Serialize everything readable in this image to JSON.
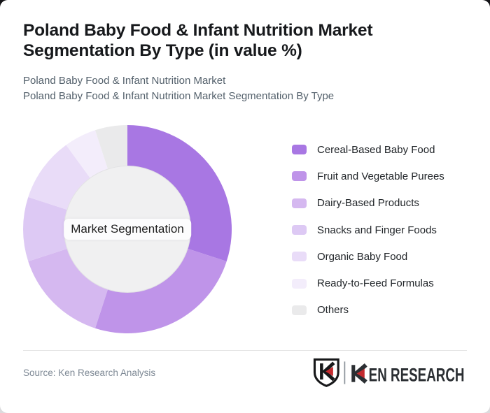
{
  "header": {
    "title": "Poland Baby Food & Infant Nutrition Market Segmentation By Type (in value %)",
    "title_lines": [
      "Poland Baby Food & Infant Nutrition Market",
      "Segmentation By Type (in value %)"
    ],
    "subtitle1": "Poland Baby Food & Infant Nutrition Market",
    "subtitle2": "Poland Baby Food & Infant Nutrition Market Segmentation By Type"
  },
  "chart_data": {
    "type": "pie",
    "subtype": "donut",
    "title": "Poland Baby Food & Infant Nutrition Market Segmentation By Type (in value %)",
    "center_label": "Market Segmentation",
    "unit": "value %",
    "categories": [
      "Cereal-Based Baby Food",
      "Fruit and Vegetable Purees",
      "Dairy-Based Products",
      "Snacks and Finger Foods",
      "Organic Baby Food",
      "Ready-to-Feed Formulas",
      "Others"
    ],
    "values": [
      30,
      25,
      15,
      10,
      10,
      5,
      5
    ],
    "colors": [
      "#a877e3",
      "#bf94e9",
      "#d5b8f0",
      "#ddc9f4",
      "#e9dcf8",
      "#f3edfb",
      "#eaeaeb"
    ],
    "start_angle_deg": 0,
    "direction": "clockwise",
    "legend_position": "right",
    "data_labels_shown": false
  },
  "footer": {
    "source": "Source: Ken Research Analysis",
    "brand_name": "KEN RESEARCH",
    "brand_text_after_k": "EN RESEARCH"
  },
  "colors": {
    "accent_red": "#c42b2f",
    "center_circle": "#f0f0f1",
    "center_circle_rim": "#e3e3e5",
    "logo_dark": "#2b2f33",
    "shield_dark": "#17181a",
    "title_text": "#17191c",
    "subtitle_text": "#53606b",
    "source_text": "#7d8894"
  }
}
